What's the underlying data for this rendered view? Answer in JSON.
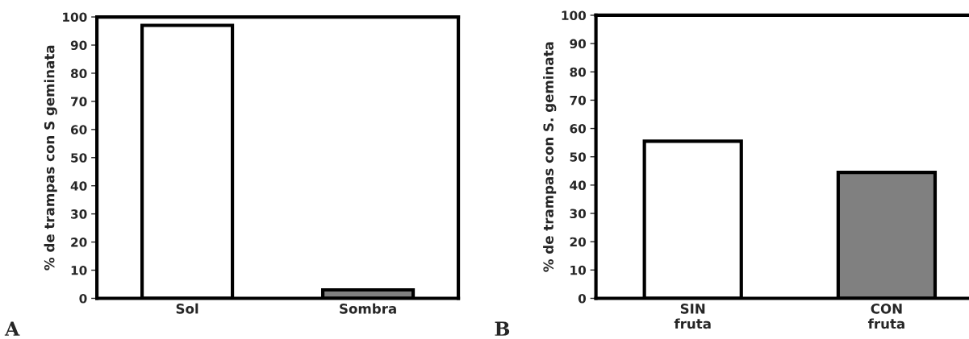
{
  "chart_data": [
    {
      "type": "bar",
      "ylabel": "% de trampas con S geminata",
      "categories": [
        "Sol",
        "Sombra"
      ],
      "values": [
        97,
        3
      ],
      "colors": [
        "#ffffff",
        "#808080"
      ],
      "ylim": [
        0,
        100
      ],
      "yticks": [
        0,
        10,
        20,
        30,
        40,
        50,
        60,
        70,
        80,
        90,
        100
      ],
      "grid": false,
      "legend": false,
      "annotations": [
        "A"
      ]
    },
    {
      "type": "bar",
      "ylabel": "% de trampas con S. geminata",
      "categories": [
        "SIN\nfruta",
        "CON\nfruta"
      ],
      "values": [
        55.5,
        44.5
      ],
      "colors": [
        "#ffffff",
        "#808080"
      ],
      "ylim": [
        0,
        100
      ],
      "yticks": [
        0,
        10,
        20,
        30,
        40,
        50,
        60,
        70,
        80,
        90,
        100
      ],
      "grid": false,
      "legend": false,
      "annotations": [
        "B"
      ]
    }
  ]
}
